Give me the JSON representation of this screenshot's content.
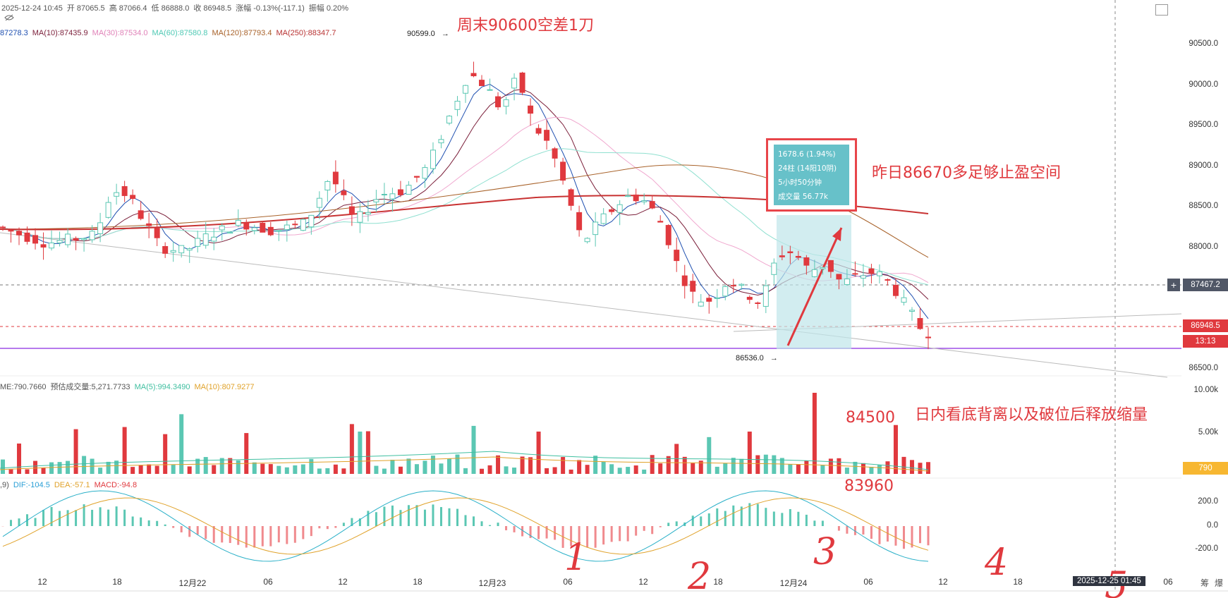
{
  "header": {
    "row1": [
      {
        "text": "2025-12-24 10:45",
        "color": "#555"
      },
      {
        "text": "开 87065.5",
        "color": "#555"
      },
      {
        "text": "高 87066.4",
        "color": "#555"
      },
      {
        "text": "低 86888.0",
        "color": "#555"
      },
      {
        "text": "收 86948.5",
        "color": "#555"
      },
      {
        "text": "涨幅 -0.13%(-117.1)",
        "color": "#555"
      },
      {
        "text": "振幅 0.20%",
        "color": "#555"
      }
    ],
    "ma_row": [
      {
        "text": "87278.3",
        "color": "#1e4fb0"
      },
      {
        "text": "MA(10):87435.9",
        "color": "#7b1f3a"
      },
      {
        "text": "MA(30):87534.0",
        "color": "#e082b8"
      },
      {
        "text": "MA(60):87580.8",
        "color": "#4fc9b4"
      },
      {
        "text": "MA(120):87793.4",
        "color": "#a8622a"
      },
      {
        "text": "MA(250):88347.7",
        "color": "#b83232"
      }
    ],
    "vol_row": [
      {
        "text": "ME:790.7660",
        "color": "#555"
      },
      {
        "text": "预估成交量:5,271.7733",
        "color": "#555"
      },
      {
        "text": "MA(5):994.3490",
        "color": "#3fbfa0"
      },
      {
        "text": "MA(10):807.9277",
        "color": "#e0a22a"
      }
    ],
    "macd_row": [
      {
        "text": ",9)",
        "color": "#555"
      },
      {
        "text": "DIF:-104.5",
        "color": "#2a9fd6"
      },
      {
        "text": "DEA:-57.1",
        "color": "#e0a22a"
      },
      {
        "text": "MACD:-94.8",
        "color": "#e0393e"
      }
    ]
  },
  "annotations": {
    "top": "周末90600空差1刀",
    "right1": "昨日86670多足够止盈空间",
    "right2": "日内看底背离以及破位后释放缩量",
    "n84500": "84500",
    "n83960": "83960",
    "h1": "1",
    "h2": "2",
    "h3": "3",
    "h4": "4",
    "h5": "5"
  },
  "markers": {
    "high": "90599.0",
    "low": "86536.0"
  },
  "statbox": {
    "line1": "1678.6 (1.94%)",
    "line2": "24柱 (14阳10阴)",
    "line3": "5小时50分钟",
    "line4": "成交量 56.77k"
  },
  "price_axis": [
    "90500.0",
    "90000.0",
    "89500.0",
    "89000.0",
    "88500.0",
    "88000.0",
    "87500.0",
    "87000.0",
    "86500.0"
  ],
  "price_axis_values": [
    90500,
    90000,
    89500,
    89000,
    88500,
    88000,
    87500,
    87000,
    86500
  ],
  "tags": {
    "crosshair": "87467.2",
    "last": "86948.5",
    "countdown": "13:13",
    "volume": "790",
    "vol_axis": [
      "10.00k",
      "5.00k"
    ],
    "macd_axis": [
      "200.0",
      "0.0",
      "-200.0"
    ]
  },
  "time_axis": [
    "12",
    "18",
    "12月22",
    "06",
    "12",
    "18",
    "12月23",
    "06",
    "12",
    "18",
    "12月24",
    "06",
    "12",
    "18",
    "06"
  ],
  "time_cursor": "2025-12-25 01:45",
  "bottom_icons": [
    "筹",
    "爆"
  ],
  "colors": {
    "up": "#5bc7b3",
    "down": "#e0393e",
    "accent": "#e0393e"
  },
  "chart_data": {
    "type": "candlestick",
    "interval": "15m",
    "x_range": [
      "12月21 09:00",
      "12月24 10:45"
    ],
    "ylim": [
      86250,
      90750
    ],
    "high_marker": 90599.0,
    "low_marker": 86536.0,
    "last": 86948.5,
    "ohlc_anchors": [
      [
        0,
        88250
      ],
      [
        6,
        88050
      ],
      [
        12,
        88150
      ],
      [
        14,
        88700
      ],
      [
        16,
        88650
      ],
      [
        20,
        88000
      ],
      [
        23,
        87950
      ],
      [
        26,
        88150
      ],
      [
        30,
        88300
      ],
      [
        34,
        88200
      ],
      [
        38,
        88300
      ],
      [
        41,
        88900
      ],
      [
        44,
        88300
      ],
      [
        47,
        88650
      ],
      [
        50,
        88700
      ],
      [
        53,
        89000
      ],
      [
        56,
        89700
      ],
      [
        58,
        90150
      ],
      [
        60,
        90000
      ],
      [
        62,
        89700
      ],
      [
        64,
        90100
      ],
      [
        66,
        89500
      ],
      [
        68,
        89250
      ],
      [
        70,
        88700
      ],
      [
        72,
        88050
      ],
      [
        74,
        88300
      ],
      [
        76,
        88500
      ],
      [
        78,
        88650
      ],
      [
        80,
        88550
      ],
      [
        82,
        88250
      ],
      [
        84,
        87700
      ],
      [
        86,
        87350
      ],
      [
        88,
        87350
      ],
      [
        90,
        87600
      ],
      [
        92,
        87450
      ],
      [
        94,
        87300
      ],
      [
        96,
        87900
      ],
      [
        98,
        87950
      ],
      [
        100,
        87700
      ],
      [
        102,
        87800
      ],
      [
        104,
        87550
      ],
      [
        106,
        87650
      ],
      [
        108,
        87700
      ],
      [
        110,
        87550
      ],
      [
        112,
        87250
      ],
      [
        114,
        86950
      ]
    ],
    "series": [
      {
        "name": "MA(10)",
        "value": 87435.9
      },
      {
        "name": "MA(30)",
        "value": 87534.0
      },
      {
        "name": "MA(60)",
        "value": 87580.8
      },
      {
        "name": "MA(120)",
        "value": 87793.4
      },
      {
        "name": "MA(250)",
        "value": 88347.7
      }
    ],
    "volume_peaks": {
      "max": 10000,
      "ma5": 994.349,
      "ma10": 807.9277
    },
    "macd": {
      "dif": -104.5,
      "dea": -57.1,
      "macd": -94.8,
      "ylim": [
        -300,
        300
      ]
    }
  }
}
